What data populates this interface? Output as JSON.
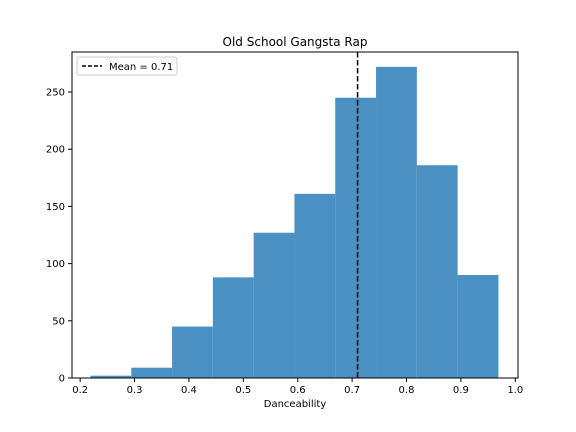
{
  "chart_data": {
    "type": "histogram",
    "title": "Old School Gangsta Rap",
    "xlabel": "Danceability",
    "ylabel": "",
    "xlim": [
      0.185,
      1.005
    ],
    "ylim": [
      0,
      285
    ],
    "xticks": [
      0.2,
      0.3,
      0.4,
      0.5,
      0.6,
      0.7,
      0.8,
      0.9,
      1.0
    ],
    "xtick_labels": [
      "0.2",
      "0.3",
      "0.4",
      "0.5",
      "0.6",
      "0.7",
      "0.8",
      "0.9",
      "1.0"
    ],
    "yticks": [
      0,
      50,
      100,
      150,
      200,
      250
    ],
    "ytick_labels": [
      "0",
      "50",
      "100",
      "150",
      "200",
      "250"
    ],
    "bin_edges": [
      0.219,
      0.294,
      0.369,
      0.444,
      0.519,
      0.594,
      0.669,
      0.744,
      0.819,
      0.894,
      0.969
    ],
    "counts": [
      2,
      9,
      45,
      88,
      127,
      161,
      245,
      272,
      186,
      90
    ],
    "bar_color": "#4a90c2",
    "mean": 0.71,
    "mean_line_style": "dashed",
    "legend": {
      "label": "Mean = 0.71",
      "position": "upper-left"
    }
  }
}
